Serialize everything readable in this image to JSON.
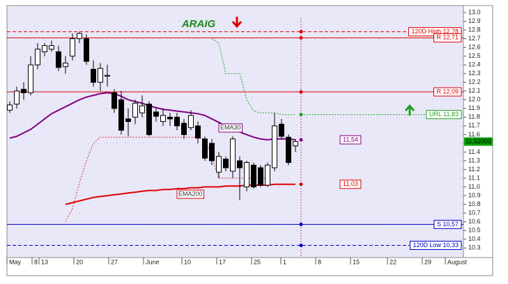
{
  "chart_data": {
    "type": "candlestick",
    "title": "ARAIG",
    "x": [
      0,
      1,
      2,
      3,
      4,
      5,
      6,
      7,
      8,
      9,
      10,
      11,
      12,
      13,
      14,
      15,
      16,
      17,
      18,
      19,
      20,
      21,
      22,
      23,
      24,
      25,
      26,
      27,
      28,
      29,
      30,
      31,
      32,
      33,
      34,
      35,
      36,
      37,
      38,
      39,
      40,
      41
    ],
    "open": [
      11.88,
      11.95,
      12.12,
      12.08,
      12.4,
      12.55,
      12.58,
      12.55,
      12.38,
      12.5,
      12.7,
      12.7,
      12.35,
      12.2,
      12.27,
      12.08,
      12.0,
      11.78,
      11.8,
      11.85,
      11.95,
      11.86,
      11.75,
      11.8,
      11.8,
      11.73,
      11.68,
      11.7,
      11.55,
      11.5,
      11.17,
      11.32,
      11.18,
      11.3,
      11.0,
      11.25,
      11.22,
      11.02,
      11.22,
      11.72,
      11.57,
      11.47
    ],
    "high": [
      11.98,
      12.15,
      12.2,
      12.5,
      12.65,
      12.65,
      12.68,
      12.62,
      12.5,
      12.76,
      12.78,
      12.75,
      12.45,
      12.42,
      12.4,
      12.12,
      12.1,
      11.9,
      12.0,
      12.05,
      11.98,
      11.9,
      11.9,
      11.85,
      11.85,
      11.78,
      11.88,
      11.75,
      11.58,
      11.55,
      11.4,
      11.35,
      11.58,
      11.35,
      11.3,
      11.28,
      11.25,
      11.28,
      11.85,
      11.78,
      11.6,
      11.55
    ],
    "low": [
      11.85,
      11.9,
      12.0,
      12.05,
      12.35,
      12.5,
      12.55,
      12.33,
      12.3,
      12.45,
      12.65,
      12.4,
      12.15,
      12.1,
      12.15,
      11.85,
      11.6,
      11.58,
      11.72,
      11.8,
      11.58,
      11.75,
      11.7,
      11.7,
      11.65,
      11.55,
      11.65,
      11.5,
      11.3,
      11.25,
      11.1,
      11.18,
      11.1,
      10.85,
      10.95,
      10.98,
      11.0,
      11.0,
      11.18,
      11.55,
      11.25,
      11.4
    ],
    "close": [
      11.94,
      12.1,
      12.08,
      12.4,
      12.58,
      12.62,
      12.62,
      12.37,
      12.42,
      12.7,
      12.76,
      12.44,
      12.2,
      12.36,
      12.28,
      11.9,
      11.65,
      11.75,
      11.96,
      11.93,
      11.6,
      11.81,
      11.82,
      11.78,
      11.7,
      11.6,
      11.82,
      11.56,
      11.33,
      11.3,
      11.35,
      11.22,
      11.55,
      11.22,
      11.28,
      11.0,
      11.02,
      11.25,
      11.7,
      11.58,
      11.28,
      11.52
    ],
    "up_color": "#ffffff",
    "down_color": "#000000",
    "lines": [
      {
        "name": "EMA30",
        "color": "#800080",
        "style": "solid",
        "values": [
          11.56,
          11.58,
          11.62,
          11.66,
          11.72,
          11.78,
          11.84,
          11.88,
          11.92,
          11.96,
          12.0,
          12.03,
          12.05,
          12.07,
          12.08,
          12.07,
          12.04,
          12.0,
          11.98,
          11.96,
          11.93,
          11.91,
          11.89,
          11.88,
          11.87,
          11.86,
          11.85,
          11.84,
          11.82,
          11.78,
          11.74,
          11.7,
          11.67,
          11.63,
          11.6,
          11.57,
          11.55,
          11.54,
          11.55,
          11.55,
          11.55,
          11.54
        ]
      },
      {
        "name": "EMA200",
        "color": "#e00000",
        "style": "solid",
        "values": [
          null,
          null,
          null,
          null,
          null,
          null,
          null,
          null,
          10.8,
          10.82,
          10.84,
          10.86,
          10.88,
          10.89,
          10.9,
          10.91,
          10.92,
          10.93,
          10.94,
          10.95,
          10.96,
          10.96,
          10.97,
          10.97,
          10.98,
          10.98,
          10.99,
          10.99,
          11.0,
          11.0,
          11.0,
          11.01,
          11.01,
          11.01,
          11.02,
          11.02,
          11.02,
          11.02,
          11.03,
          11.03,
          11.03,
          11.03
        ]
      },
      {
        "color": "#e03030",
        "style": "dotted",
        "values": [
          null,
          null,
          null,
          null,
          null,
          null,
          null,
          null,
          10.6,
          10.75,
          11.05,
          11.3,
          11.5,
          11.57,
          11.57,
          11.57,
          11.57,
          11.57,
          11.57,
          11.57,
          11.57,
          11.57,
          11.57,
          11.57,
          11.57,
          11.57,
          11.57,
          11.57,
          11.55,
          11.35,
          11.1,
          11.1,
          11.1,
          11.1,
          11.1,
          11.1,
          11.1,
          11.1,
          null,
          null,
          null,
          null
        ]
      },
      {
        "color": "#20a020",
        "style": "dotted",
        "values": [
          null,
          null,
          null,
          null,
          null,
          null,
          null,
          null,
          null,
          null,
          null,
          null,
          null,
          null,
          null,
          null,
          null,
          null,
          null,
          null,
          null,
          null,
          null,
          null,
          null,
          null,
          null,
          null,
          null,
          12.7,
          12.65,
          12.3,
          12.3,
          12.3,
          12.0,
          11.87,
          11.85,
          11.85,
          11.85,
          11.83,
          11.83,
          11.83
        ]
      }
    ],
    "levels": [
      {
        "value": 12.78,
        "label": "120D High 12,78",
        "color": "#e00000",
        "line": "dashed"
      },
      {
        "value": 12.71,
        "label": "R 12,71",
        "color": "#e00000",
        "line": "solid"
      },
      {
        "value": 12.09,
        "label": "R 12,09",
        "color": "#e00000",
        "line": "solid"
      },
      {
        "value": 11.83,
        "label": "URL 11,83",
        "color": "#20a020",
        "line": "dotted"
      },
      {
        "value": 11.54,
        "label": "11,54",
        "color": "#800080",
        "line": "none"
      },
      {
        "value": 11.03,
        "label": "11,03",
        "color": "#e00000",
        "line": "none"
      },
      {
        "value": 10.57,
        "label": "S 10,57",
        "color": "#0000c0",
        "line": "solid"
      },
      {
        "value": 10.33,
        "label": "120D Low 10,33",
        "color": "#0000c0",
        "line": "dashed"
      }
    ],
    "last_price": {
      "value": 11.52,
      "label": "11.52000"
    },
    "xlim": [
      -0.4,
      65.1
    ],
    "xticks": [
      {
        "value": -0.4,
        "label": "May"
      },
      {
        "value": 3.2,
        "label": "8"
      },
      {
        "value": 4.2,
        "label": "13"
      },
      {
        "value": 9.2,
        "label": "20"
      },
      {
        "value": 14.2,
        "label": "27"
      },
      {
        "value": 19.2,
        "label": "June"
      },
      {
        "value": 24.7,
        "label": "10"
      },
      {
        "value": 29.7,
        "label": "17"
      },
      {
        "value": 34.7,
        "label": "25"
      },
      {
        "value": 38.9,
        "label": "1"
      },
      {
        "value": 43.9,
        "label": "8"
      },
      {
        "value": 48.9,
        "label": "15"
      },
      {
        "value": 54.2,
        "label": "22"
      },
      {
        "value": 59.2,
        "label": "29"
      },
      {
        "value": 62.5,
        "label": "August"
      }
    ],
    "ylim": [
      10.19,
      13.08
    ],
    "yticks": [
      10.3,
      10.4,
      10.5,
      10.6,
      10.7,
      10.8,
      10.9,
      {
        "value": 11,
        "label": "11.0"
      },
      11.1,
      11.2,
      11.3,
      11.4,
      11.5,
      11.6,
      11.7,
      11.8,
      11.9,
      {
        "value": 12,
        "label": "12.0"
      },
      12.1,
      12.2,
      12.3,
      12.4,
      12.5,
      12.6,
      12.7,
      12.8,
      12.9,
      {
        "value": 13,
        "label": "13.0"
      }
    ],
    "grid": true
  }
}
